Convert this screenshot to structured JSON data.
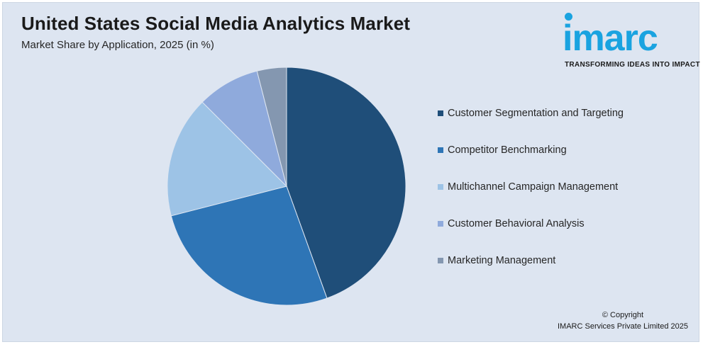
{
  "header": {
    "title": "United States Social Media Analytics Market",
    "subtitle": "Market Share by Application, 2025 (in %)"
  },
  "logo": {
    "word": "imarc",
    "tagline": "TRANSFORMING IDEAS INTO IMPACT"
  },
  "chart_data": {
    "type": "pie",
    "title": "United States Social Media Analytics Market",
    "subtitle": "Market Share by Application, 2025 (in %)",
    "categories": [
      "Customer Segmentation and Targeting",
      "Competitor Benchmarking",
      "Multichannel Campaign Management",
      "Customer Behavioral Analysis",
      "Marketing Management"
    ],
    "values": [
      44.5,
      26.5,
      16.5,
      8.5,
      4.0
    ],
    "colors": [
      "#1f4e79",
      "#2e75b6",
      "#9dc3e6",
      "#8faadc",
      "#8497b0"
    ],
    "start_angle_deg": 0,
    "direction": "clockwise",
    "legend_position": "right"
  },
  "footer": {
    "copyright_line1": "© Copyright",
    "copyright_line2": "IMARC Services Private Limited 2025"
  }
}
